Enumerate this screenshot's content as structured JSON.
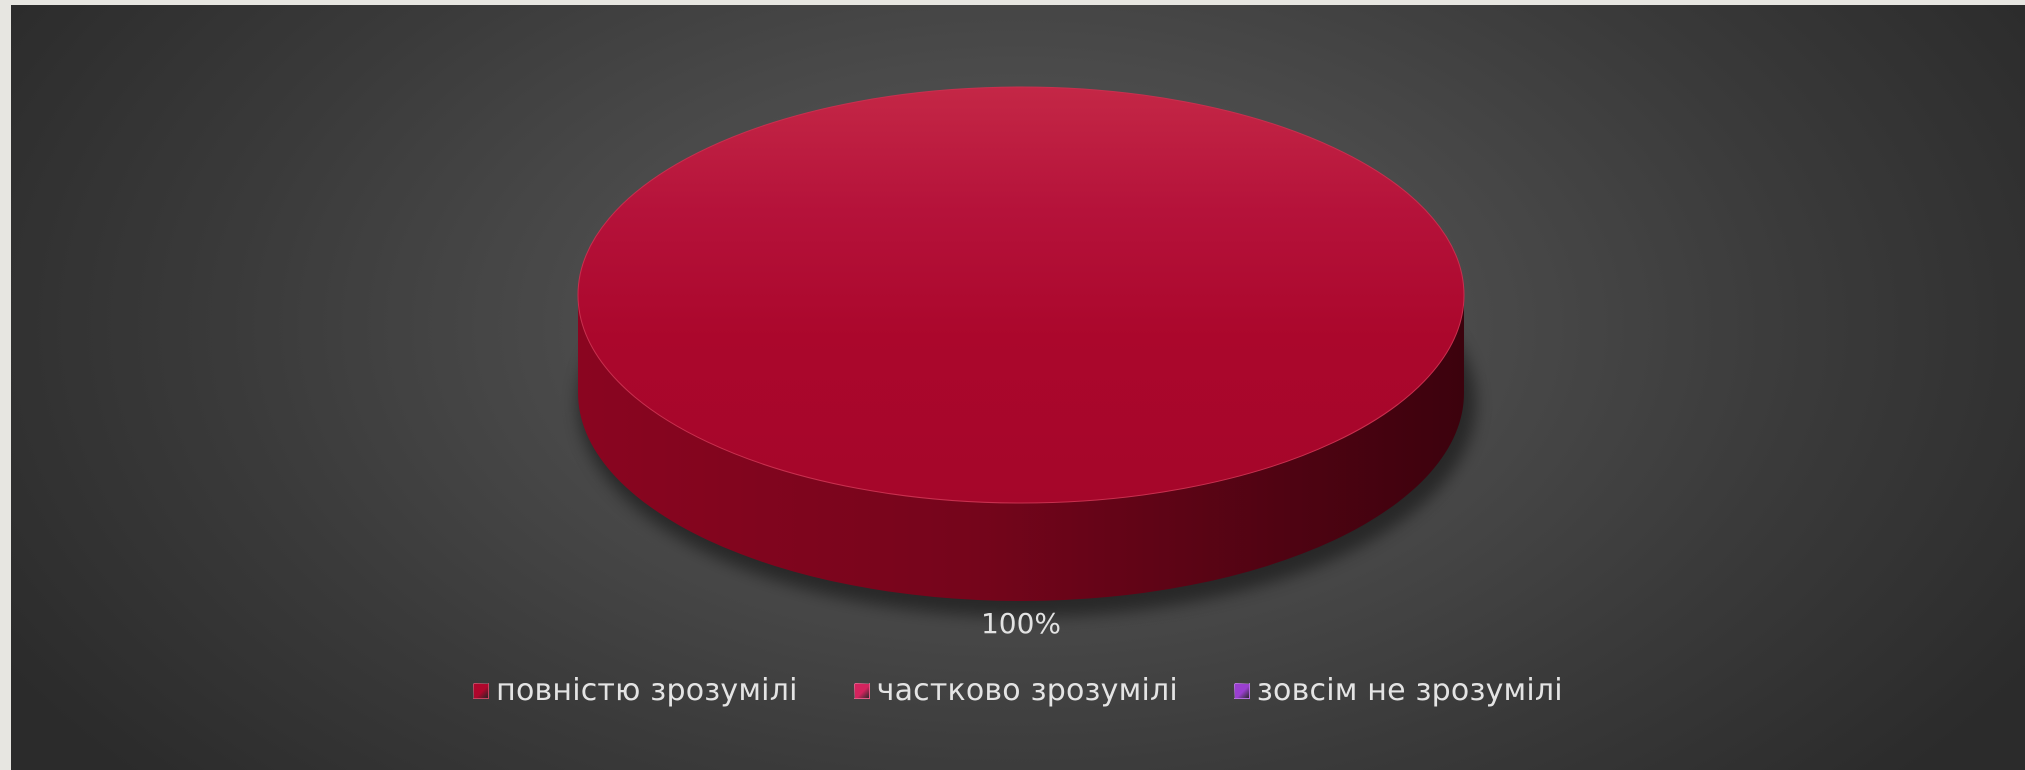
{
  "chart_data": {
    "type": "pie",
    "style": "3d",
    "categories": [
      "повністю зрозумілі",
      "частково зрозумілі",
      "зовсім не зрозумілі"
    ],
    "values": [
      100,
      0,
      0
    ],
    "data_labels": [
      "100%"
    ],
    "colors": [
      "#b0062c",
      "#d4235e",
      "#9a3fd0"
    ],
    "legend_position": "bottom"
  }
}
